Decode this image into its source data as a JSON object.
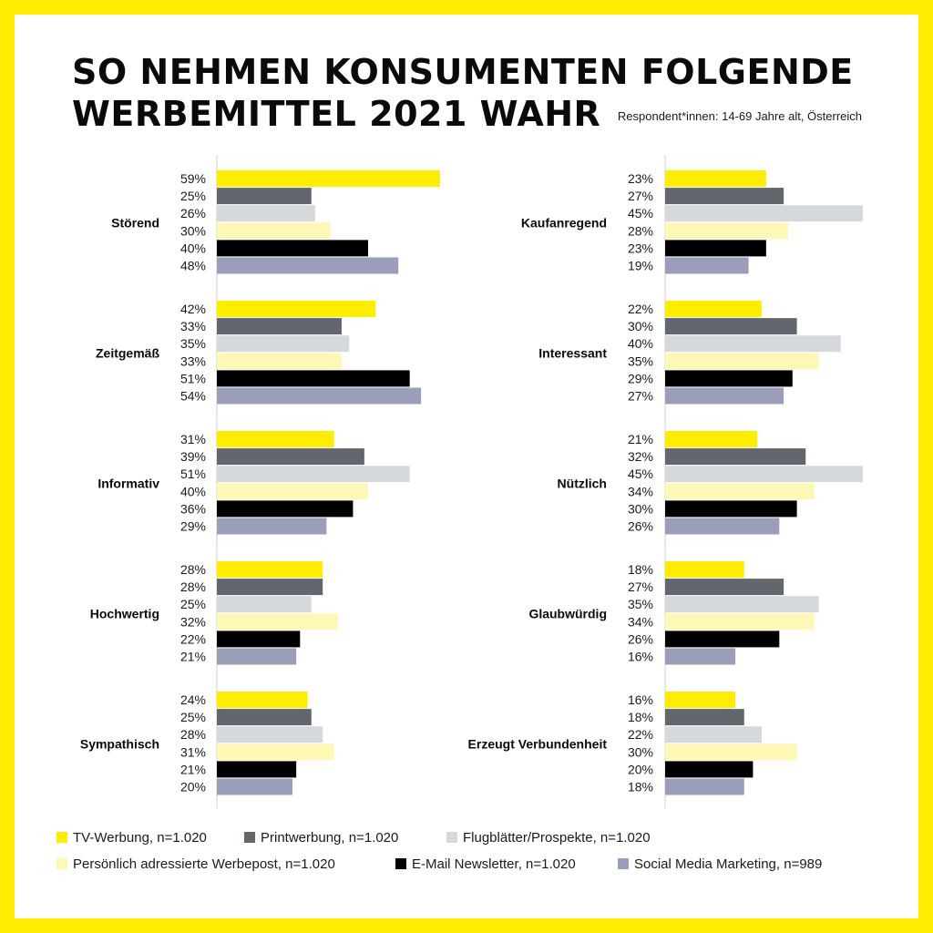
{
  "header": {
    "title_line1": "SO NEHMEN KONSUMENTEN FOLGENDE",
    "title_line2": "WERBEMITTEL 2021 WAHR",
    "subtitle": "Respondent*innen: 14-69 Jahre alt, Österreich"
  },
  "colors": {
    "frame": "#FFED00",
    "series": [
      "#FFED00",
      "#62666D",
      "#D6D9DC",
      "#FFF7B5",
      "#000000",
      "#9A9EB8"
    ]
  },
  "chart_data": {
    "type": "bar",
    "orientation": "horizontal",
    "value_format": "percent",
    "series": [
      {
        "name": "TV-Werbung, n=1.020"
      },
      {
        "name": "Printwerbung, n=1.020"
      },
      {
        "name": "Flugblätter/Prospekte, n=1.020"
      },
      {
        "name": "Persönlich adressierte Werbepost, n=1.020"
      },
      {
        "name": "E-Mail Newsletter, n=1.020"
      },
      {
        "name": "Social Media Marketing, n=989"
      }
    ],
    "panels": [
      {
        "categories": [
          {
            "label": "Störend",
            "values": [
              59,
              25,
              26,
              30,
              40,
              48
            ]
          },
          {
            "label": "Zeitgemäß",
            "values": [
              42,
              33,
              35,
              33,
              51,
              54
            ]
          },
          {
            "label": "Informativ",
            "values": [
              31,
              39,
              51,
              40,
              36,
              29
            ]
          },
          {
            "label": "Hochwertig",
            "values": [
              28,
              28,
              25,
              32,
              22,
              21
            ]
          },
          {
            "label": "Sympathisch",
            "values": [
              24,
              25,
              28,
              31,
              21,
              20
            ]
          }
        ]
      },
      {
        "categories": [
          {
            "label": "Kaufanregend",
            "values": [
              23,
              27,
              45,
              28,
              23,
              19
            ]
          },
          {
            "label": "Interessant",
            "values": [
              22,
              30,
              40,
              35,
              29,
              27
            ]
          },
          {
            "label": "Nützlich",
            "values": [
              21,
              32,
              45,
              34,
              30,
              26
            ]
          },
          {
            "label": "Glaubwürdig",
            "values": [
              18,
              27,
              35,
              34,
              26,
              16
            ]
          },
          {
            "label": "Erzeugt Verbundenheit",
            "values": [
              16,
              18,
              22,
              30,
              20,
              18
            ]
          }
        ]
      }
    ]
  }
}
